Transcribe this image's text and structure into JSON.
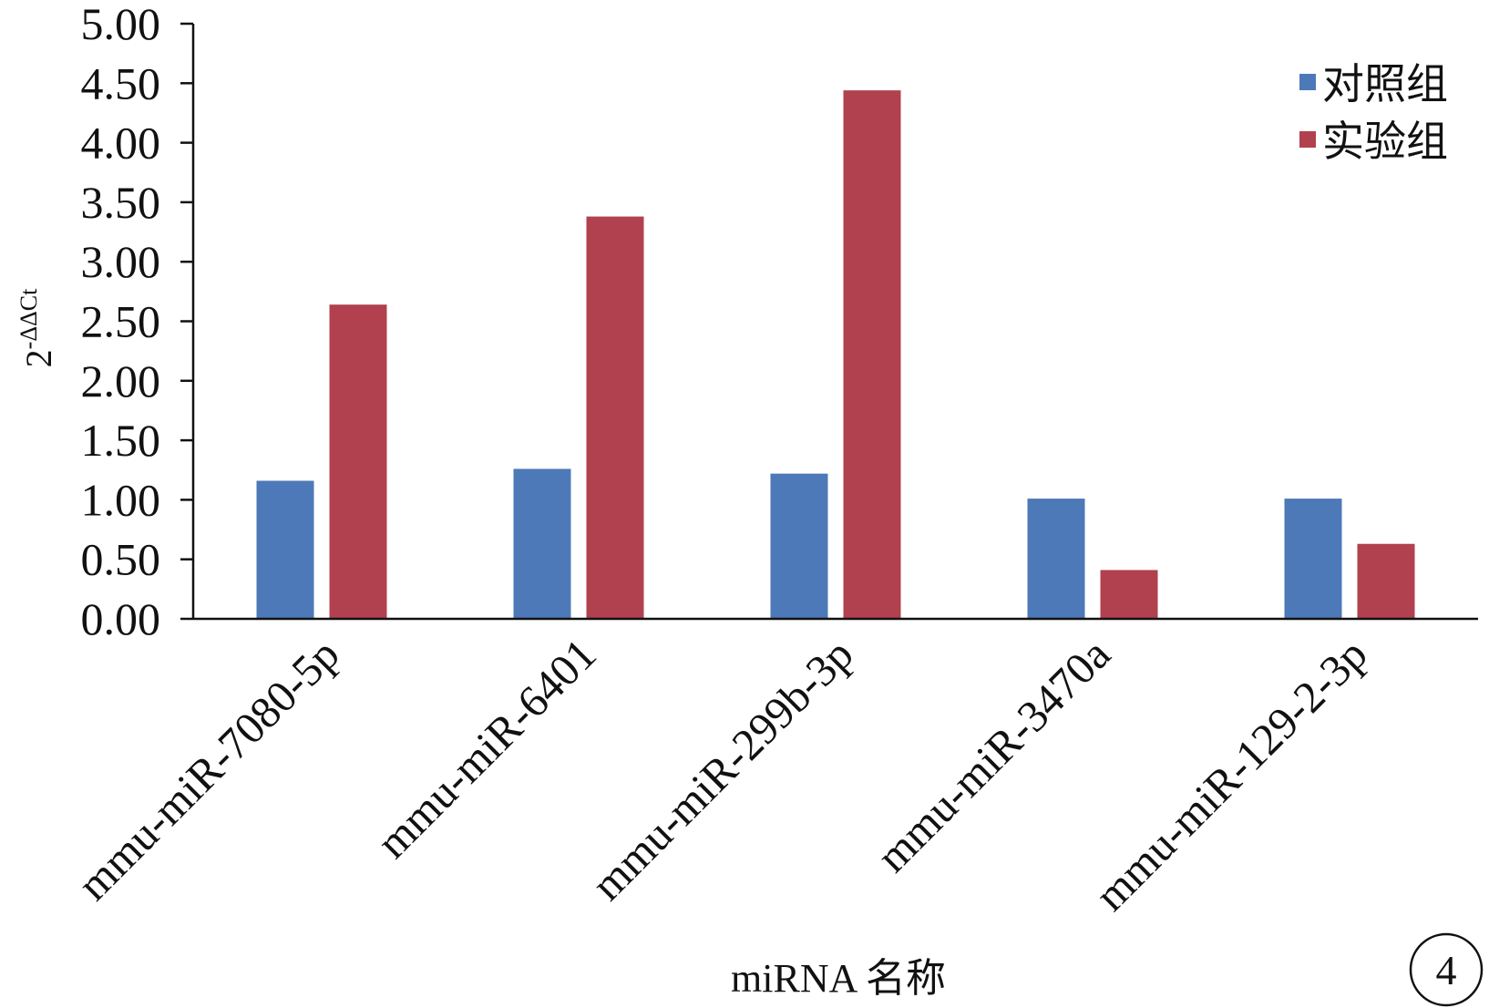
{
  "chart_data": {
    "type": "bar",
    "categories": [
      "mmu-miR-7080-5p",
      "mmu-miR-6401",
      "mmu-miR-299b-3p",
      "mmu-miR-3470a",
      "mmu-miR-129-2-3p"
    ],
    "series": [
      {
        "name": "对照组",
        "color": "#4e79b8",
        "values": [
          1.16,
          1.26,
          1.22,
          1.01,
          1.01
        ]
      },
      {
        "name": "实验组",
        "color": "#b1414f",
        "values": [
          2.64,
          3.38,
          4.44,
          0.41,
          0.63
        ]
      }
    ],
    "ylim": [
      0,
      5
    ],
    "yticks": [
      "0.00",
      "0.50",
      "1.00",
      "1.50",
      "2.00",
      "2.50",
      "3.00",
      "3.50",
      "4.00",
      "4.50",
      "5.00"
    ],
    "ylabel_base": "2",
    "ylabel_sup": "-ΔΔCt",
    "xlabel": "miRNA 名称",
    "legend_position": "top-right",
    "grid": false
  },
  "panel_label": "4"
}
